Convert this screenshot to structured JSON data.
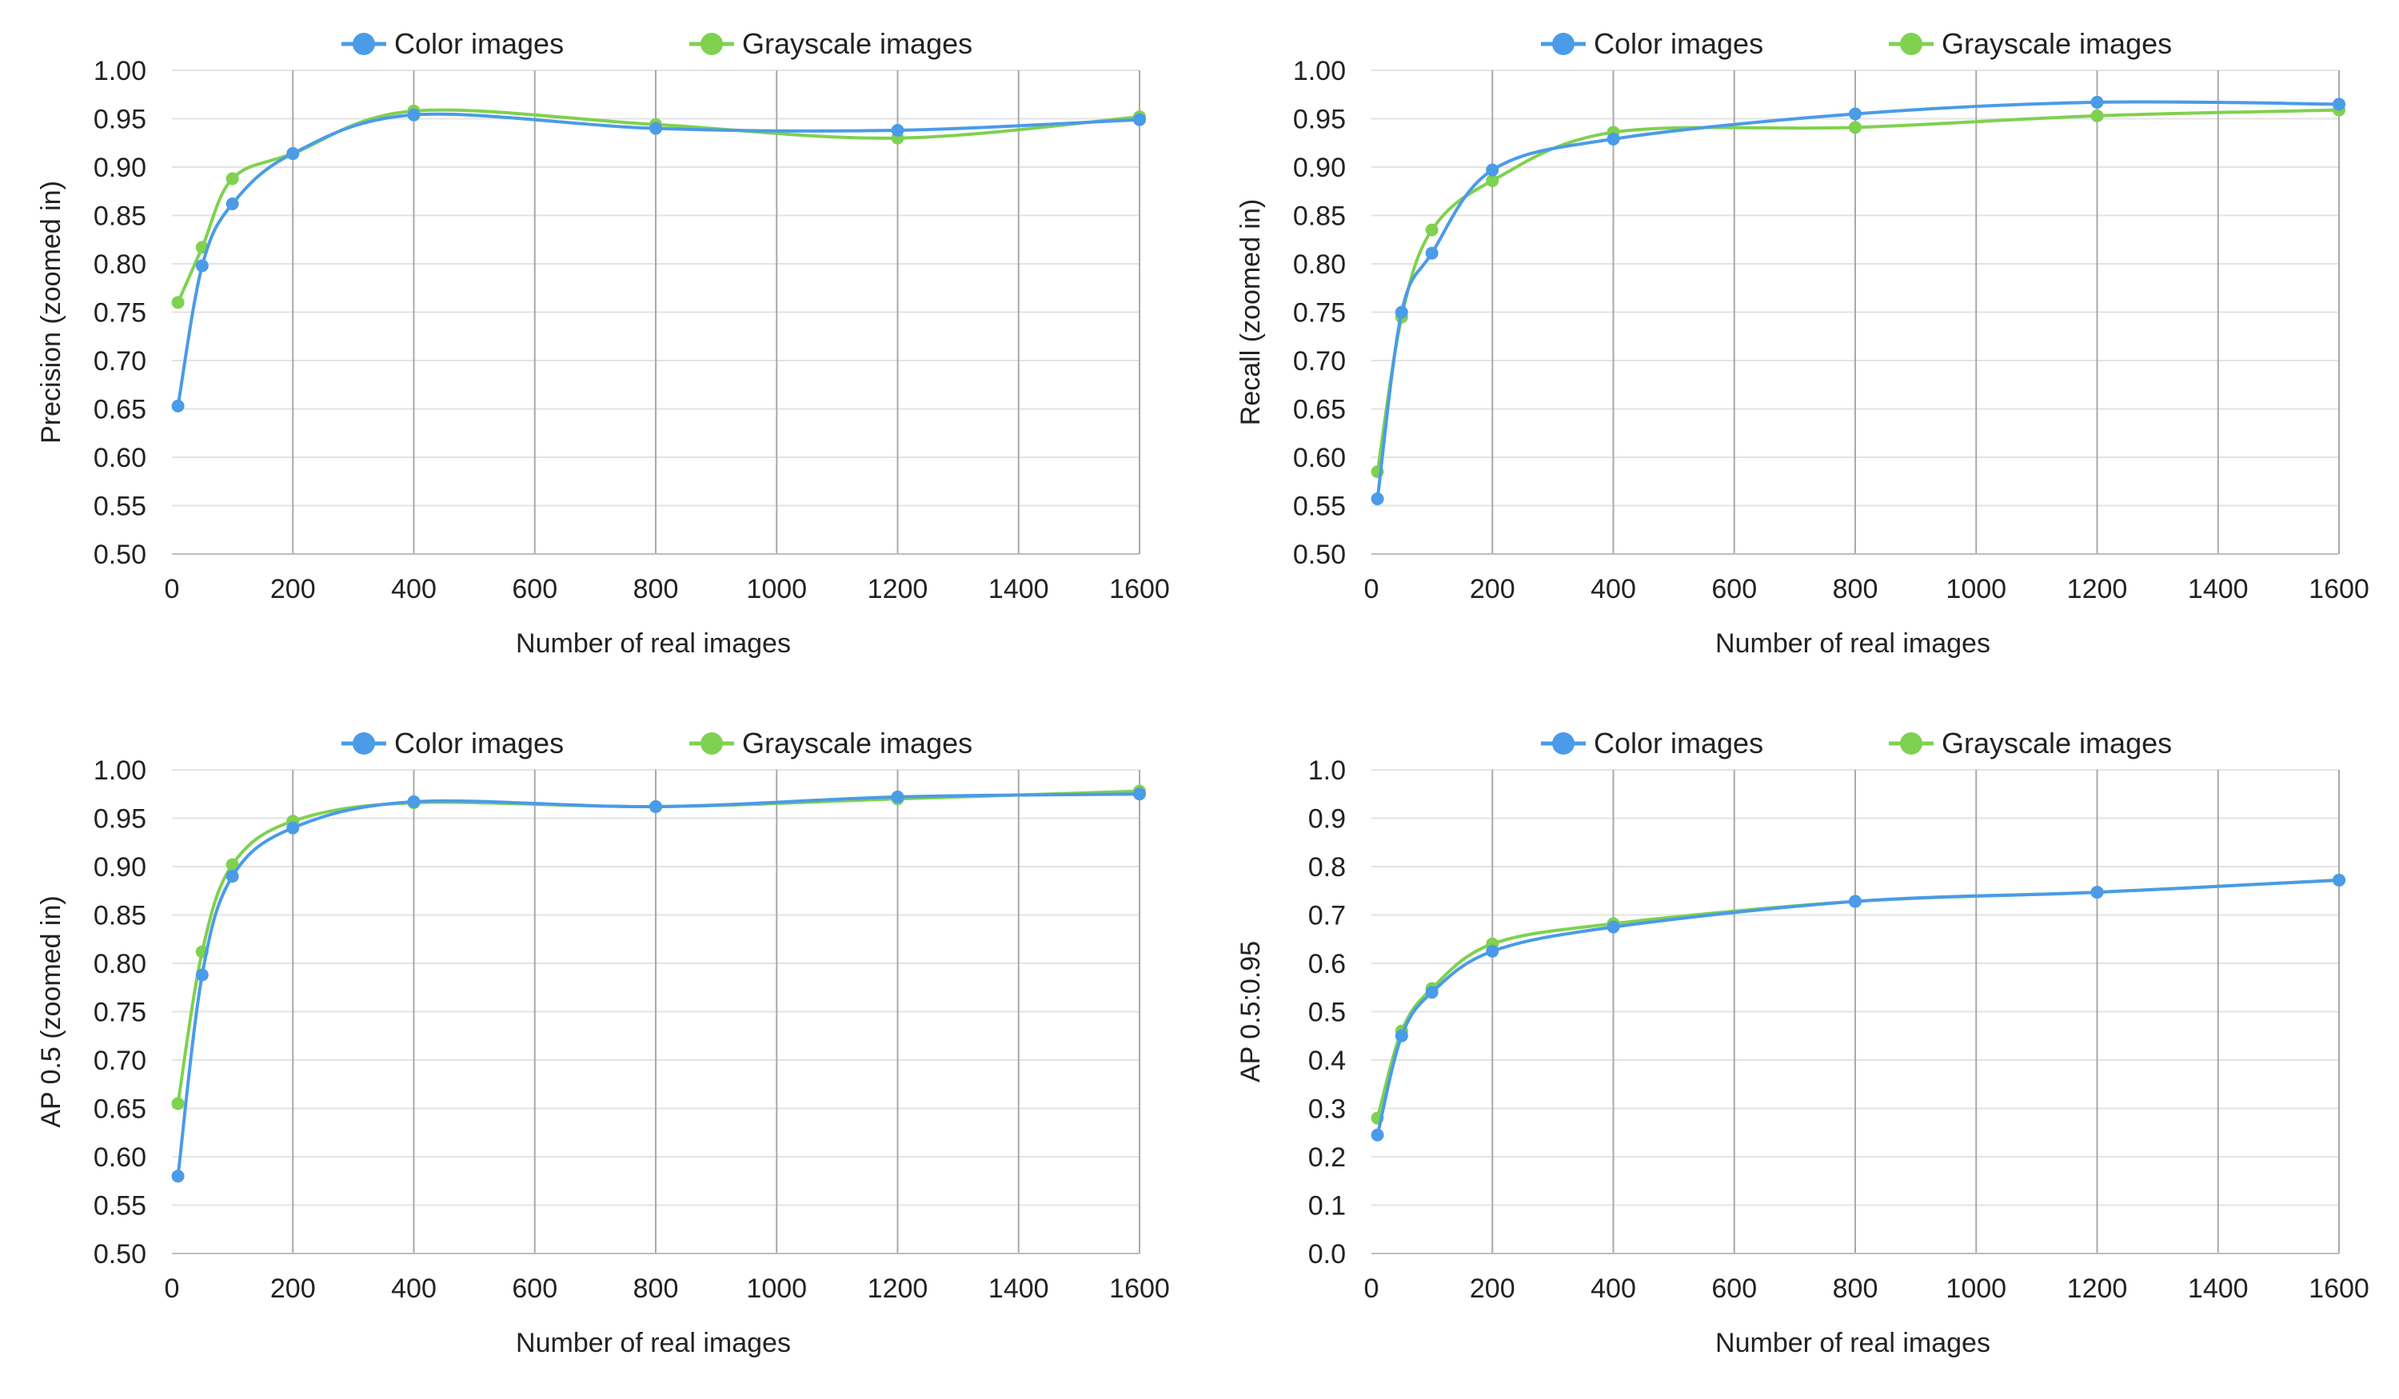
{
  "colors": {
    "color_series": "#4a9be8",
    "grayscale_series": "#7fd14f"
  },
  "chart_data": [
    {
      "type": "line",
      "xlabel": "Number of real images",
      "ylabel": "Precision (zoomed in)",
      "xlim": [
        0,
        1600
      ],
      "ylim": [
        0.5,
        1.0
      ],
      "xticks": [
        "0",
        "200",
        "400",
        "600",
        "800",
        "1000",
        "1200",
        "1400",
        "1600"
      ],
      "yticks": [
        "0.50",
        "0.55",
        "0.60",
        "0.65",
        "0.70",
        "0.75",
        "0.80",
        "0.85",
        "0.90",
        "0.95",
        "1.00"
      ],
      "grid": "on",
      "legend": "top-center",
      "series": [
        {
          "name": "Color images",
          "x": [
            10,
            50,
            100,
            200,
            400,
            800,
            1200,
            1600
          ],
          "values": [
            0.653,
            0.798,
            0.862,
            0.914,
            0.954,
            0.94,
            0.938,
            0.949
          ]
        },
        {
          "name": "Grayscale images",
          "x": [
            10,
            50,
            100,
            200,
            400,
            800,
            1200,
            1600
          ],
          "values": [
            0.76,
            0.817,
            0.888,
            0.914,
            0.958,
            0.944,
            0.93,
            0.952
          ]
        }
      ]
    },
    {
      "type": "line",
      "xlabel": "Number of real images",
      "ylabel": "Recall (zoomed in)",
      "xlim": [
        0,
        1600
      ],
      "ylim": [
        0.5,
        1.0
      ],
      "xticks": [
        "0",
        "200",
        "400",
        "600",
        "800",
        "1000",
        "1200",
        "1400",
        "1600"
      ],
      "yticks": [
        "0.50",
        "0.55",
        "0.60",
        "0.65",
        "0.70",
        "0.75",
        "0.80",
        "0.85",
        "0.90",
        "0.95",
        "1.00"
      ],
      "grid": "on",
      "legend": "top-center",
      "series": [
        {
          "name": "Color images",
          "x": [
            10,
            50,
            100,
            200,
            400,
            800,
            1200,
            1600
          ],
          "values": [
            0.557,
            0.75,
            0.811,
            0.897,
            0.929,
            0.955,
            0.967,
            0.965
          ]
        },
        {
          "name": "Grayscale images",
          "x": [
            10,
            50,
            100,
            200,
            400,
            800,
            1200,
            1600
          ],
          "values": [
            0.585,
            0.745,
            0.835,
            0.886,
            0.936,
            0.941,
            0.953,
            0.959
          ]
        }
      ]
    },
    {
      "type": "line",
      "xlabel": "Number of real images",
      "ylabel": "AP 0.5 (zoomed in)",
      "xlim": [
        0,
        1600
      ],
      "ylim": [
        0.5,
        1.0
      ],
      "xticks": [
        "0",
        "200",
        "400",
        "600",
        "800",
        "1000",
        "1200",
        "1400",
        "1600"
      ],
      "yticks": [
        "0.50",
        "0.55",
        "0.60",
        "0.65",
        "0.70",
        "0.75",
        "0.80",
        "0.85",
        "0.90",
        "0.95",
        "1.00"
      ],
      "grid": "on",
      "legend": "top-center",
      "series": [
        {
          "name": "Color images",
          "x": [
            10,
            50,
            100,
            200,
            400,
            800,
            1200,
            1600
          ],
          "values": [
            0.58,
            0.788,
            0.89,
            0.94,
            0.967,
            0.962,
            0.972,
            0.975
          ]
        },
        {
          "name": "Grayscale images",
          "x": [
            10,
            50,
            100,
            200,
            400,
            800,
            1200,
            1600
          ],
          "values": [
            0.655,
            0.812,
            0.902,
            0.947,
            0.966,
            0.962,
            0.97,
            0.978
          ]
        }
      ]
    },
    {
      "type": "line",
      "xlabel": "Number of real images",
      "ylabel": "AP 0.5:0.95",
      "xlim": [
        0,
        1600
      ],
      "ylim": [
        0.0,
        1.0
      ],
      "xticks": [
        "0",
        "200",
        "400",
        "600",
        "800",
        "1000",
        "1200",
        "1400",
        "1600"
      ],
      "yticks": [
        "0.0",
        "0.1",
        "0.2",
        "0.3",
        "0.4",
        "0.5",
        "0.6",
        "0.7",
        "0.8",
        "0.9",
        "1.0"
      ],
      "grid": "on",
      "legend": "top-center",
      "series": [
        {
          "name": "Color images",
          "x": [
            10,
            50,
            100,
            200,
            400,
            800,
            1200,
            1600
          ],
          "values": [
            0.245,
            0.45,
            0.54,
            0.625,
            0.675,
            0.728,
            0.747,
            0.772
          ]
        },
        {
          "name": "Grayscale images",
          "x": [
            10,
            50,
            100,
            200,
            400,
            800,
            1200,
            1600
          ],
          "values": [
            0.28,
            0.46,
            0.548,
            0.64,
            0.682,
            0.728,
            0.747,
            0.772
          ]
        }
      ]
    }
  ]
}
